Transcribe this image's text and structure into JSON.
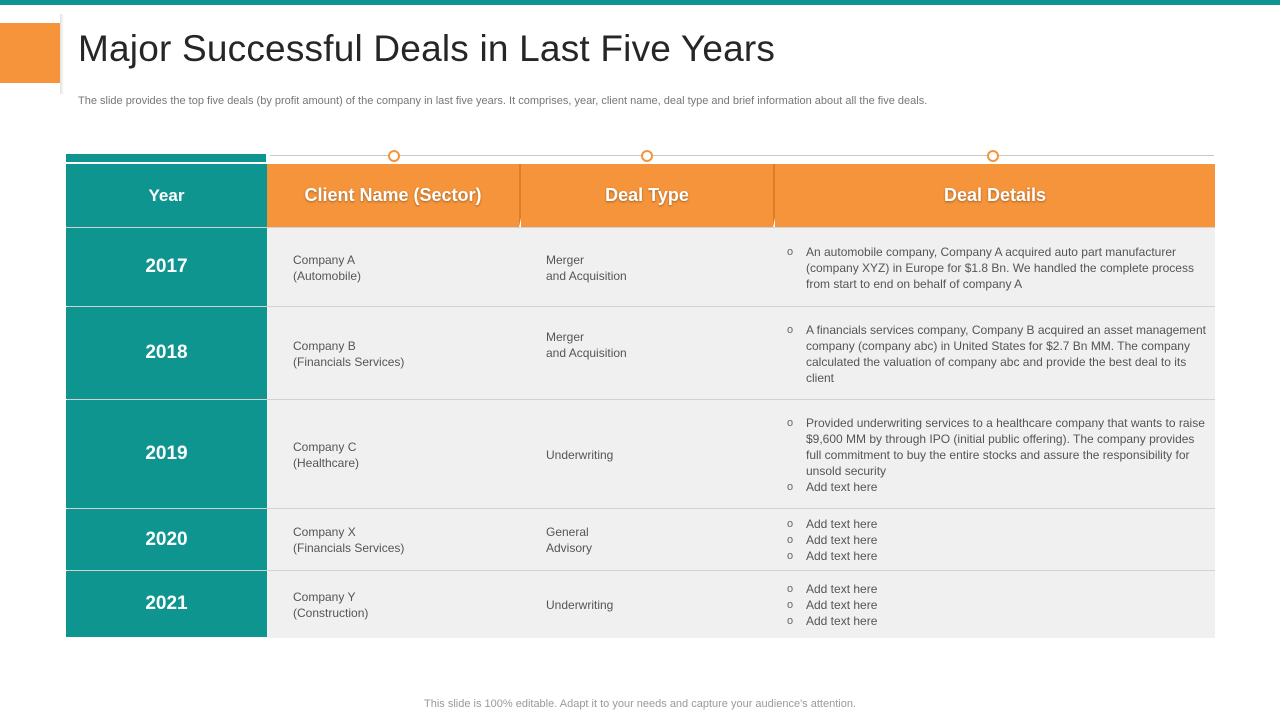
{
  "slide": {
    "title": "Major Successful Deals in Last Five Years",
    "subtitle": "The slide provides the top five deals (by profit amount) of the company in last five years. It comprises, year, client name, deal type and brief information about all the five deals.",
    "footer": "This slide is 100% editable. Adapt it to your needs and capture your audience's attention."
  },
  "colors": {
    "teal": "#0f9590",
    "orange": "#f5943a",
    "row_bg": "#f0f0f0"
  },
  "table": {
    "headers": {
      "year": "Year",
      "client": "Client Name (Sector)",
      "deal_type": "Deal Type",
      "details": "Deal Details"
    },
    "rows": [
      {
        "year": "2017",
        "client": "Company A\n(Automobile)",
        "deal_type": "Merger\nand Acquisition",
        "details": [
          "An automobile company, Company A acquired auto part manufacturer (company XYZ) in Europe for $1.8 Bn. We handled the complete process from start to end on behalf of company A"
        ]
      },
      {
        "year": "2018",
        "client": "Company B\n(Financials Services)",
        "deal_type": "Merger\nand Acquisition",
        "details": [
          "A financials services company, Company B acquired an asset management company (company abc) in United States for $2.7 Bn MM. The company calculated the valuation of company abc and provide the best deal to its client"
        ]
      },
      {
        "year": "2019",
        "client": "Company C\n (Healthcare)",
        "deal_type": "Underwriting",
        "details": [
          "Provided underwriting services to a healthcare company that wants to raise $9,600 MM by through IPO (initial public offering). The company provides full commitment to buy the entire stocks and assure the responsibility for unsold security",
          "Add text here"
        ]
      },
      {
        "year": "2020",
        "client": "Company X\n(Financials Services)",
        "deal_type": "General\nAdvisory",
        "details": [
          "Add text here",
          "Add text here",
          "Add text here"
        ]
      },
      {
        "year": "2021",
        "client": "Company Y\n(Construction)",
        "deal_type": "Underwriting",
        "details": [
          "Add text here",
          "Add text here",
          "Add text here"
        ]
      }
    ]
  }
}
